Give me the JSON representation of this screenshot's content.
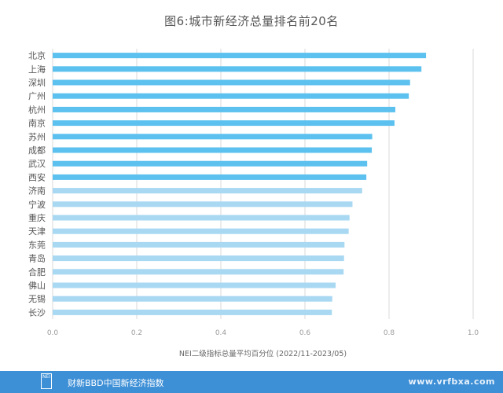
{
  "chart_data": {
    "type": "bar",
    "orientation": "horizontal",
    "title": "图6:城市新经济总量排名前20名",
    "xlabel": "NEI二级指标总量平均百分位 (2022/11-2023/05)",
    "ylabel": "",
    "xlim": [
      0,
      1
    ],
    "xticks": [
      "0.0",
      "0.2",
      "0.4",
      "0.6",
      "0.8",
      "1.0"
    ],
    "grid": true,
    "categories": [
      "北京",
      "上海",
      "深圳",
      "广州",
      "杭州",
      "南京",
      "苏州",
      "成都",
      "武汉",
      "西安",
      "济南",
      "宁波",
      "重庆",
      "天津",
      "东莞",
      "青岛",
      "合肥",
      "佛山",
      "无锡",
      "长沙"
    ],
    "values": [
      0.888,
      0.877,
      0.85,
      0.847,
      0.815,
      0.813,
      0.76,
      0.759,
      0.748,
      0.746,
      0.736,
      0.713,
      0.706,
      0.704,
      0.694,
      0.693,
      0.692,
      0.673,
      0.665,
      0.664
    ],
    "colors": {
      "top": "#5cc1ef",
      "bottom": "#a8d8f2"
    }
  },
  "footer": {
    "logo": "NEI",
    "source": "财新BBD中国新经济指数",
    "watermark": "www.vrfbxa.com"
  },
  "colors": {
    "footer_bg": "#3d8fd6",
    "grid": "#d9d9d9",
    "text": "#555555"
  }
}
